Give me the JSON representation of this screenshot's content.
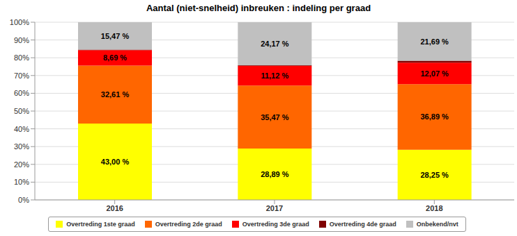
{
  "chart_data": {
    "type": "bar",
    "title": "Aantal (niet-snelheid) inbreuken : indeling per graad",
    "categories": [
      "2016",
      "2017",
      "2018"
    ],
    "series": [
      {
        "name": "Overtreding 1ste graad",
        "color": "#ffff00",
        "values": [
          43.0,
          28.89,
          28.25
        ],
        "value_labels": [
          "43,00 %",
          "28,89 %",
          "28,25 %"
        ]
      },
      {
        "name": "Overtreding 2de graad",
        "color": "#ff6600",
        "values": [
          32.61,
          35.47,
          36.89
        ],
        "value_labels": [
          "32,61 %",
          "35,47 %",
          "36,89 %"
        ]
      },
      {
        "name": "Overtreding 3de graad",
        "color": "#ff0000",
        "values": [
          8.69,
          11.12,
          12.07
        ],
        "value_labels": [
          "8,69 %",
          "11,12 %",
          "12,07 %"
        ]
      },
      {
        "name": "Overtreding 4de graad",
        "color": "#800000",
        "values": [
          0.23,
          0.35,
          1.1
        ],
        "data_labels": false
      },
      {
        "name": "Onbekend/nvt",
        "color": "#c0c0c0",
        "values": [
          15.47,
          24.17,
          21.69
        ],
        "value_labels": [
          "15,47 %",
          "24,17 %",
          "21,69 %"
        ]
      }
    ],
    "ylim": [
      0,
      100
    ],
    "yticks": [
      {
        "value": 0,
        "label": "0%"
      },
      {
        "value": 10,
        "label": "10%"
      },
      {
        "value": 20,
        "label": "20%"
      },
      {
        "value": 30,
        "label": "30%"
      },
      {
        "value": 40,
        "label": "40%"
      },
      {
        "value": 50,
        "label": "50%"
      },
      {
        "value": 60,
        "label": "60%"
      },
      {
        "value": 70,
        "label": "70%"
      },
      {
        "value": 80,
        "label": "80%"
      },
      {
        "value": 90,
        "label": "90%"
      },
      {
        "value": 100,
        "label": "100%"
      }
    ],
    "stacked": true,
    "grid": true,
    "legend": "bottom",
    "data_labels": true
  }
}
